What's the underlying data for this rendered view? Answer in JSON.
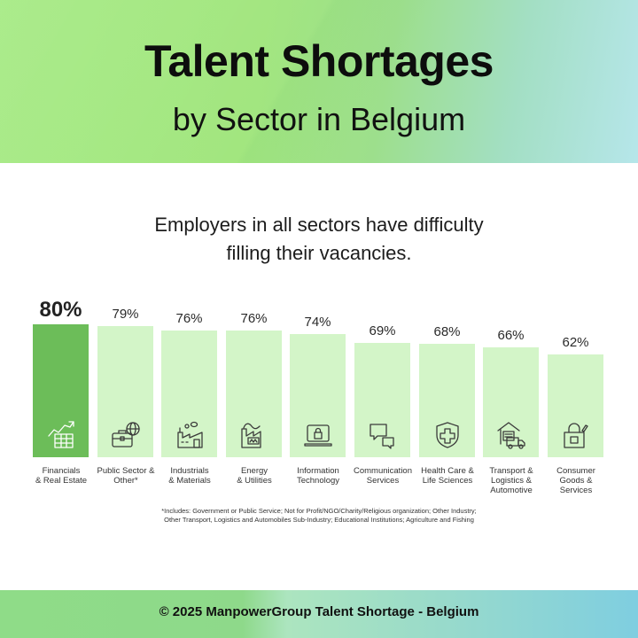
{
  "header": {
    "title": "Talent Shortages",
    "subtitle": "by Sector in Belgium"
  },
  "lead": {
    "line1": "Employers in all sectors have difficulty",
    "line2": "filling their vacancies."
  },
  "bars": [
    {
      "value": "80%",
      "label1": "Financials",
      "label2": "& Real Estate",
      "label3": "",
      "icon": "chart-growth-table-icon",
      "highlight": true
    },
    {
      "value": "79%",
      "label1": "Public Sector &",
      "label2": "Other*",
      "label3": "",
      "icon": "briefcase-globe-icon",
      "highlight": false
    },
    {
      "value": "76%",
      "label1": "Industrials",
      "label2": "& Materials",
      "label3": "",
      "icon": "factory-icon",
      "highlight": false
    },
    {
      "value": "76%",
      "label1": "Energy",
      "label2": "& Utilities",
      "label3": "",
      "icon": "power-plant-battery-icon",
      "highlight": false
    },
    {
      "value": "74%",
      "label1": "Information",
      "label2": "Technology",
      "label3": "",
      "icon": "laptop-lock-icon",
      "highlight": false
    },
    {
      "value": "69%",
      "label1": "Communication",
      "label2": "Services",
      "label3": "",
      "icon": "chat-bubbles-icon",
      "highlight": false
    },
    {
      "value": "68%",
      "label1": "Health Care &",
      "label2": "Life Sciences",
      "label3": "",
      "icon": "shield-cross-icon",
      "highlight": false
    },
    {
      "value": "66%",
      "label1": "Transport &",
      "label2": "Logistics &",
      "label3": "Automotive",
      "icon": "warehouse-truck-icon",
      "highlight": false
    },
    {
      "value": "62%",
      "label1": "Consumer",
      "label2": "Goods &",
      "label3": "Services",
      "icon": "shopping-bag-icon",
      "highlight": false
    }
  ],
  "footnote": {
    "line1": "*Includes: Government or Public Service; Not for Profit/NGO/Charity/Religious organization; Other Industry;",
    "line2": "Other Transport, Logistics and Automobiles Sub-Industry; Educational Institutions; Agriculture and Fishing"
  },
  "footer": {
    "text": "© 2025 ManpowerGroup Talent Shortage - Belgium"
  },
  "colors": {
    "highlight_bar": "#6cbd59",
    "bar": "#d3f5c8",
    "header_green": "#a4ea82",
    "header_blue": "#b6e6ea"
  },
  "chart_data": {
    "type": "bar",
    "title": "Talent Shortages by Sector in Belgium",
    "subtitle": "Employers in all sectors have difficulty filling their vacancies.",
    "categories": [
      "Financials & Real Estate",
      "Public Sector & Other*",
      "Industrials & Materials",
      "Energy & Utilities",
      "Information Technology",
      "Communication Services",
      "Health Care & Life Sciences",
      "Transport & Logistics & Automotive",
      "Consumer Goods & Services"
    ],
    "values": [
      80,
      79,
      76,
      76,
      74,
      69,
      68,
      66,
      62
    ],
    "unit": "%",
    "xlabel": "",
    "ylabel": "",
    "ylim": [
      0,
      100
    ],
    "grid": false,
    "highlighted_category": "Financials & Real Estate",
    "annotations": [
      "*Includes: Government or Public Service; Not for Profit/NGO/Charity/Religious organization; Other Industry; Other Transport, Logistics and Automobiles Sub-Industry; Educational Institutions; Agriculture and Fishing"
    ]
  }
}
